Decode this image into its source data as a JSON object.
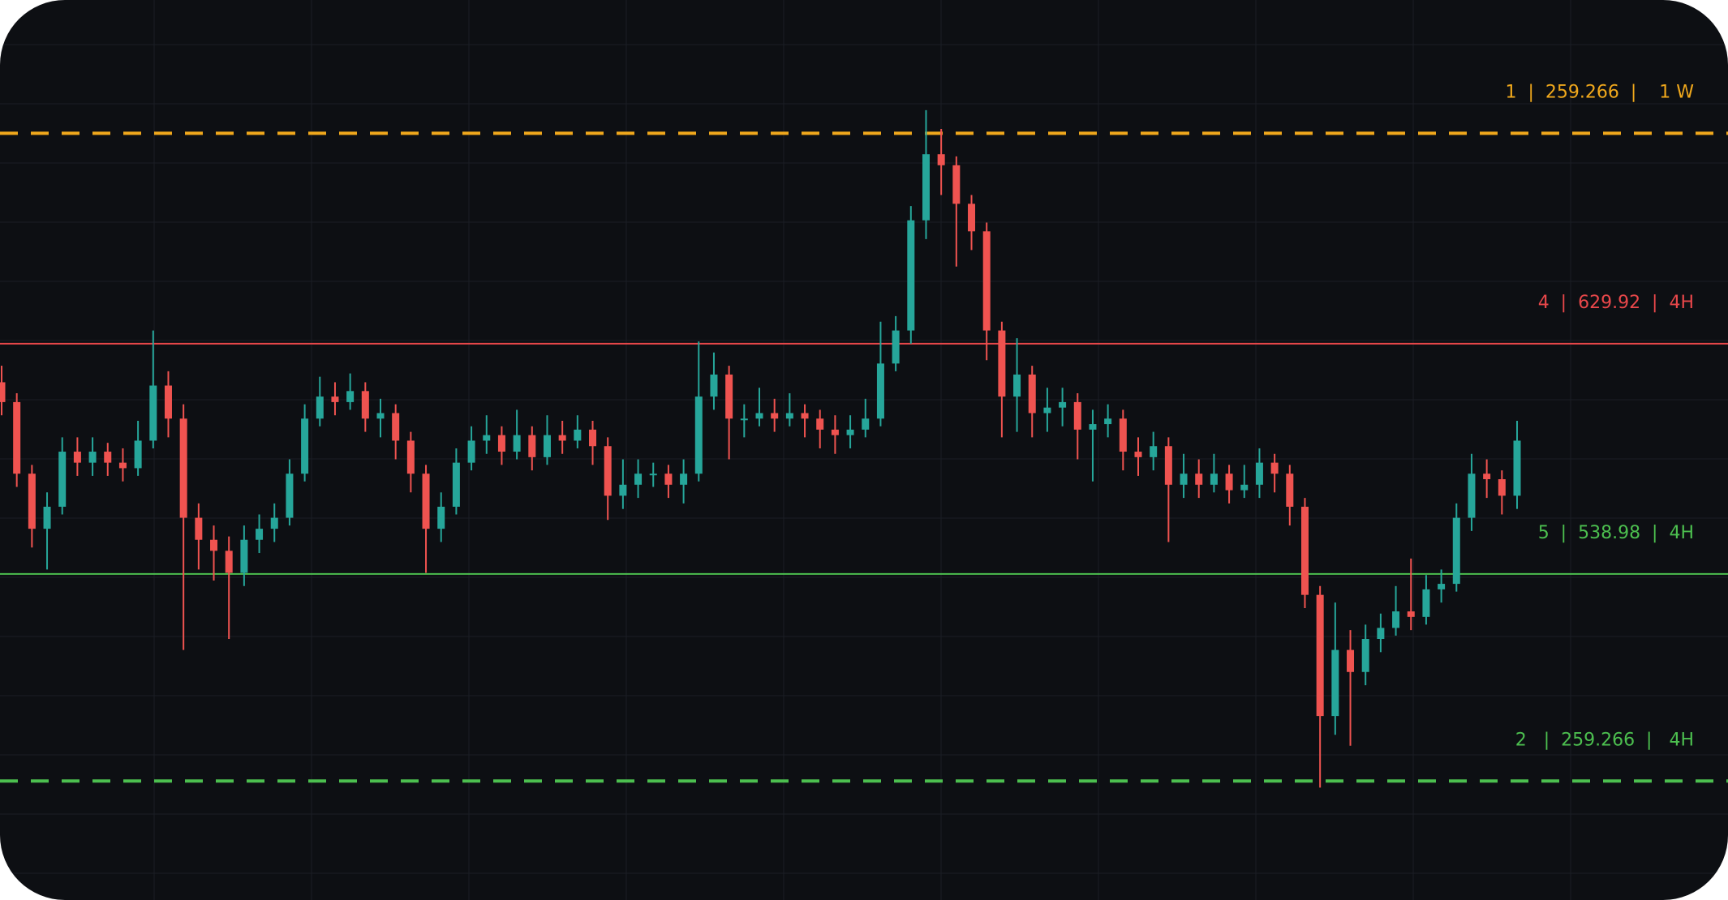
{
  "chart_data": {
    "type": "candlestick",
    "ylim": [
      0,
      817
    ],
    "grid": true,
    "up_color": "#26a69a",
    "down_color": "#ef5350",
    "series": {
      "open": [
        470,
        452,
        387,
        337,
        357,
        407,
        397,
        407,
        397,
        392,
        417,
        467,
        437,
        347,
        327,
        317,
        297,
        327,
        337,
        347,
        387,
        437,
        457,
        452,
        462,
        437,
        442,
        417,
        387,
        337,
        357,
        397,
        417,
        422,
        407,
        422,
        402,
        422,
        417,
        427,
        412,
        367,
        377,
        387,
        387,
        377,
        387,
        457,
        477,
        437,
        437,
        442,
        437,
        442,
        437,
        427,
        422,
        427,
        437,
        487,
        517,
        617,
        677,
        667,
        632,
        607,
        517,
        457,
        477,
        442,
        447,
        452,
        427,
        432,
        437,
        407,
        402,
        412,
        377,
        387,
        377,
        387,
        372,
        377,
        397,
        387,
        357,
        277,
        167,
        227,
        207,
        237,
        247,
        262,
        257,
        282,
        287,
        347,
        387,
        382,
        367
      ],
      "high": [
        485,
        460,
        395,
        370,
        420,
        420,
        420,
        415,
        410,
        435,
        517,
        480,
        450,
        360,
        340,
        330,
        340,
        350,
        360,
        400,
        450,
        475,
        470,
        478,
        470,
        455,
        450,
        425,
        395,
        370,
        410,
        430,
        440,
        430,
        445,
        430,
        440,
        435,
        440,
        435,
        420,
        400,
        400,
        397,
        395,
        400,
        507,
        497,
        485,
        450,
        465,
        455,
        460,
        450,
        445,
        440,
        440,
        455,
        525,
        530,
        630,
        717,
        700,
        675,
        640,
        615,
        525,
        510,
        485,
        465,
        465,
        460,
        445,
        450,
        445,
        420,
        425,
        420,
        405,
        400,
        405,
        395,
        395,
        410,
        405,
        395,
        365,
        285,
        270,
        245,
        250,
        260,
        285,
        310,
        295,
        300,
        360,
        405,
        400,
        390,
        435
      ],
      "low": [
        440,
        375,
        320,
        300,
        350,
        385,
        385,
        385,
        380,
        385,
        410,
        420,
        227,
        300,
        290,
        237,
        285,
        315,
        325,
        340,
        380,
        430,
        440,
        445,
        425,
        420,
        400,
        370,
        297,
        325,
        350,
        390,
        405,
        395,
        400,
        390,
        395,
        405,
        410,
        395,
        345,
        355,
        365,
        375,
        365,
        360,
        380,
        445,
        400,
        420,
        430,
        425,
        430,
        420,
        410,
        405,
        410,
        420,
        430,
        480,
        505,
        600,
        640,
        575,
        590,
        490,
        420,
        425,
        420,
        425,
        430,
        400,
        380,
        420,
        390,
        385,
        390,
        325,
        365,
        365,
        370,
        360,
        365,
        365,
        370,
        340,
        265,
        102,
        150,
        140,
        195,
        225,
        240,
        245,
        250,
        270,
        280,
        335,
        365,
        350,
        355
      ],
      "close": [
        452,
        387,
        337,
        357,
        407,
        397,
        407,
        397,
        392,
        417,
        467,
        437,
        347,
        327,
        317,
        297,
        327,
        337,
        347,
        387,
        437,
        457,
        452,
        462,
        437,
        442,
        417,
        387,
        337,
        357,
        397,
        417,
        422,
        407,
        422,
        402,
        422,
        417,
        427,
        412,
        367,
        377,
        387,
        387,
        377,
        387,
        457,
        477,
        437,
        437,
        442,
        437,
        442,
        437,
        427,
        422,
        427,
        437,
        487,
        517,
        617,
        677,
        667,
        632,
        607,
        517,
        457,
        477,
        442,
        447,
        452,
        427,
        432,
        437,
        407,
        402,
        412,
        377,
        387,
        377,
        387,
        372,
        377,
        397,
        387,
        357,
        277,
        167,
        227,
        207,
        237,
        247,
        262,
        257,
        282,
        287,
        347,
        387,
        382,
        367,
        417
      ]
    },
    "levels": [
      {
        "label": "1  |  259.266  |    1 W",
        "value": 696,
        "color": "#f0a81c",
        "style": "dashed"
      },
      {
        "label": "4  |  629.92  |  4H",
        "value": 505,
        "color": "#e8474a",
        "style": "solid"
      },
      {
        "label": "5  |  538.98  |  4H",
        "value": 296,
        "color": "#4cbf4f",
        "style": "solid"
      },
      {
        "label": "2   |  259.266  |   4H",
        "value": 108,
        "color": "#4cbf4f",
        "style": "dashed"
      }
    ]
  }
}
